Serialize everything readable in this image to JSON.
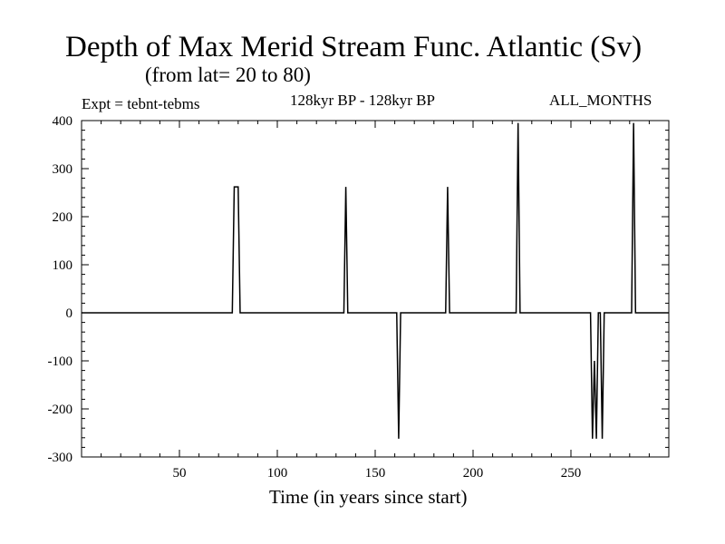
{
  "chart_data": {
    "type": "line",
    "title": "Depth of Max Merid Stream Func. Atlantic (Sv)",
    "subtitle": "(from lat= 20 to 80)",
    "left_label": "Expt = tebnt-tebms",
    "center_label": "128kyr BP - 128kyr BP",
    "right_label": "ALL_MONTHS",
    "xlabel": "Time (in years since start)",
    "ylabel": "",
    "xlim": [
      0,
      300
    ],
    "ylim": [
      -300,
      400
    ],
    "xticks": [
      50,
      100,
      150,
      200,
      250
    ],
    "yticks": [
      -300,
      -200,
      -100,
      0,
      100,
      200,
      300,
      400
    ],
    "grid": false,
    "series": [
      {
        "color": "#000000",
        "x": [
          0,
          77,
          78,
          80,
          81,
          134,
          135,
          136,
          161,
          162,
          163,
          186,
          187,
          188,
          222,
          223,
          224,
          260,
          261,
          262,
          263,
          264,
          265,
          266,
          267,
          281,
          282,
          283,
          300
        ],
        "y": [
          0,
          0,
          262,
          262,
          0,
          0,
          262,
          0,
          0,
          -262,
          0,
          0,
          262,
          0,
          0,
          395,
          0,
          0,
          -262,
          -100,
          -262,
          0,
          0,
          -262,
          0,
          0,
          395,
          0,
          0
        ]
      }
    ]
  }
}
